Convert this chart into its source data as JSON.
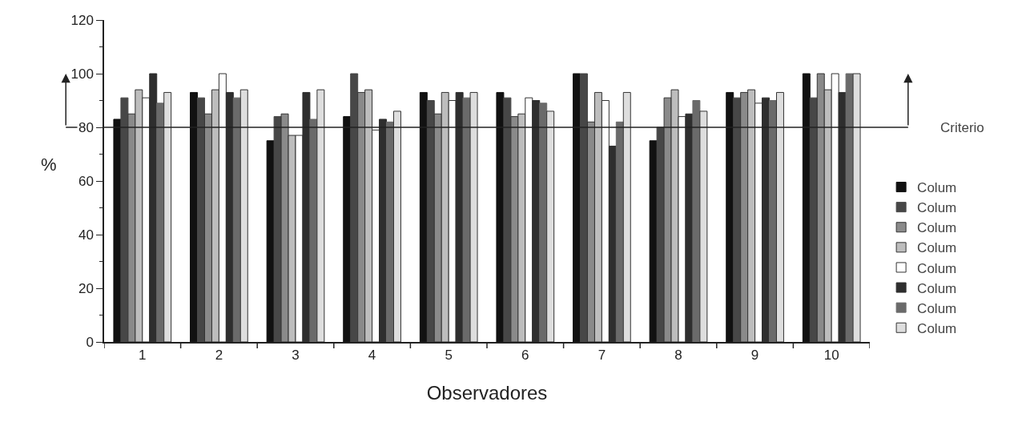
{
  "chart_data": {
    "type": "bar",
    "xlabel": "Observadores",
    "ylabel": "%",
    "categories": [
      "1",
      "2",
      "3",
      "4",
      "5",
      "6",
      "7",
      "8",
      "9",
      "10"
    ],
    "series": [
      {
        "name": "Colum",
        "color": "#111111",
        "values": [
          83,
          93,
          75,
          84,
          93,
          93,
          100,
          75,
          93,
          100
        ]
      },
      {
        "name": "Colum",
        "color": "#474747",
        "values": [
          91,
          91,
          84,
          100,
          90,
          91,
          100,
          80,
          91,
          91
        ]
      },
      {
        "name": "Colum",
        "color": "#8a8a8a",
        "values": [
          85,
          85,
          85,
          93,
          85,
          84,
          82,
          91,
          93,
          100
        ]
      },
      {
        "name": "Colum",
        "color": "#bdbdbd",
        "values": [
          94,
          94,
          77,
          94,
          93,
          85,
          93,
          94,
          94,
          94
        ]
      },
      {
        "name": "Colum",
        "color": "#ffffff",
        "values": [
          91,
          100,
          77,
          79,
          90,
          91,
          90,
          84,
          89,
          100
        ]
      },
      {
        "name": "Colum",
        "color": "#2e2e2e",
        "values": [
          100,
          93,
          93,
          83,
          93,
          90,
          73,
          85,
          91,
          93
        ]
      },
      {
        "name": "Colum",
        "color": "#6a6a6a",
        "values": [
          89,
          91,
          83,
          82,
          91,
          89,
          82,
          90,
          90,
          100
        ]
      },
      {
        "name": "Colum",
        "color": "#dedede",
        "values": [
          93,
          94,
          94,
          86,
          93,
          86,
          93,
          86,
          93,
          100
        ]
      }
    ],
    "ylim": [
      0,
      120
    ],
    "yticks": [
      0,
      20,
      40,
      60,
      80,
      100,
      120
    ],
    "ref_lines": [
      {
        "axis": "y",
        "value": 80,
        "label": "Criterio",
        "color": "#222222"
      }
    ],
    "legend": "right"
  }
}
